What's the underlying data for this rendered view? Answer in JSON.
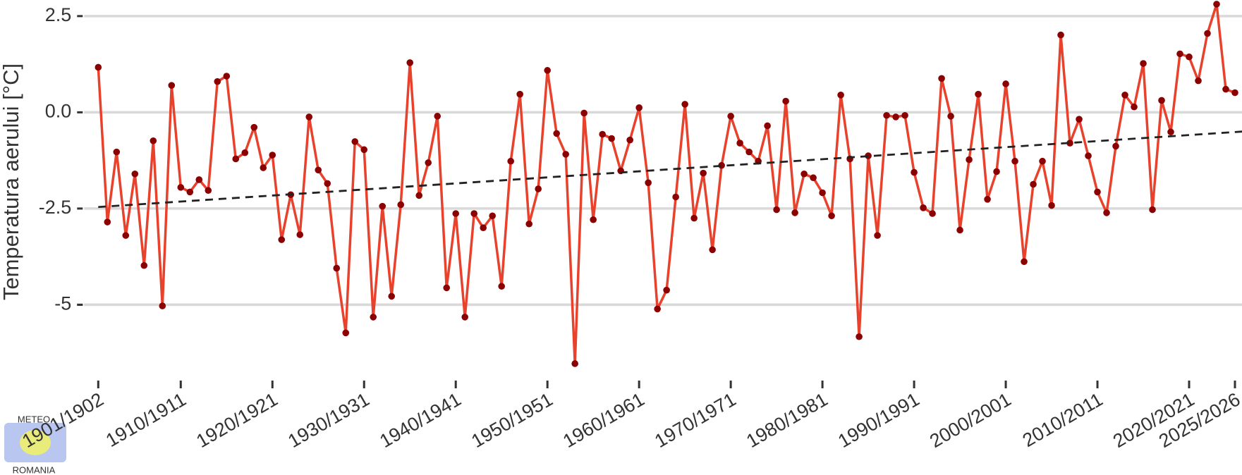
{
  "chart_data": {
    "type": "line",
    "y_label": "Temperatura aerului [°C]",
    "logo": {
      "top": "METEO",
      "bottom": "ROMANIA"
    },
    "categories": [
      "1901/1902",
      null,
      null,
      null,
      null,
      null,
      null,
      null,
      null,
      "1910/1911",
      null,
      null,
      null,
      null,
      null,
      null,
      null,
      null,
      null,
      "1920/1921",
      null,
      null,
      null,
      null,
      null,
      null,
      null,
      null,
      null,
      "1930/1931",
      null,
      null,
      null,
      null,
      null,
      null,
      null,
      null,
      null,
      "1940/1941",
      null,
      null,
      null,
      null,
      null,
      null,
      null,
      null,
      null,
      "1950/1951",
      null,
      null,
      null,
      null,
      null,
      null,
      null,
      null,
      null,
      "1960/1961",
      null,
      null,
      null,
      null,
      null,
      null,
      null,
      null,
      null,
      "1970/1971",
      null,
      null,
      null,
      null,
      null,
      null,
      null,
      null,
      null,
      "1980/1981",
      null,
      null,
      null,
      null,
      null,
      null,
      null,
      null,
      null,
      "1990/1991",
      null,
      null,
      null,
      null,
      null,
      null,
      null,
      null,
      null,
      "2000/2001",
      null,
      null,
      null,
      null,
      null,
      null,
      null,
      null,
      null,
      "2010/2011",
      null,
      null,
      null,
      null,
      null,
      null,
      null,
      null,
      null,
      "2020/2021",
      null,
      null,
      null,
      null,
      "2025/2026"
    ],
    "series": [
      {
        "color": "#e8412c",
        "marker_color": "#8b0000",
        "values": [
          1.17,
          -2.85,
          -1.03,
          -3.2,
          -1.6,
          -3.98,
          -0.74,
          -5.03,
          0.7,
          -1.95,
          -2.07,
          -1.75,
          -2.03,
          0.8,
          0.94,
          -1.21,
          -1.05,
          -0.39,
          -1.44,
          -1.11,
          -3.31,
          -2.14,
          -3.18,
          -0.12,
          -1.5,
          -1.85,
          -4.05,
          -5.73,
          -0.76,
          -0.97,
          -5.32,
          -2.44,
          -4.78,
          -2.4,
          1.29,
          -2.16,
          -1.31,
          -0.1,
          -4.56,
          -2.63,
          -5.32,
          -2.63,
          -3.0,
          -2.69,
          -4.52,
          -1.27,
          0.47,
          -2.9,
          -1.99,
          1.09,
          -0.55,
          -1.09,
          -6.53,
          -0.02,
          -2.79,
          -0.57,
          -0.68,
          -1.52,
          -0.72,
          0.12,
          -1.83,
          -5.11,
          -4.62,
          -2.2,
          0.21,
          -2.75,
          -1.58,
          -3.57,
          -1.38,
          -0.1,
          -0.8,
          -1.03,
          -1.27,
          -0.35,
          -2.53,
          0.29,
          -2.61,
          -1.6,
          -1.7,
          -2.09,
          -2.69,
          0.45,
          -1.21,
          -5.83,
          -1.13,
          -3.2,
          -0.08,
          -0.12,
          -0.08,
          -1.56,
          -2.48,
          -2.63,
          0.88,
          -0.1,
          -3.06,
          -1.23,
          0.47,
          -2.26,
          -1.54,
          0.74,
          -1.27,
          -3.88,
          -1.87,
          -1.27,
          -2.42,
          2.01,
          -0.8,
          -0.18,
          -1.13,
          -2.07,
          -2.61,
          -0.88,
          0.45,
          0.14,
          1.27,
          -2.53,
          0.31,
          -0.51,
          1.52,
          1.44,
          0.82,
          2.05,
          2.81,
          0.6,
          0.51
        ]
      }
    ],
    "trend": {
      "values": [
        -2.46,
        -0.49
      ],
      "color": "#222222"
    },
    "ylim": [
      -6.75,
      2.9
    ],
    "yticks": [
      -5,
      {
        "value": -5,
        "label": "-5.0"
      },
      -2.5,
      {
        "value": 0,
        "label": "0.0"
      },
      2.5
    ],
    "grid": true
  }
}
